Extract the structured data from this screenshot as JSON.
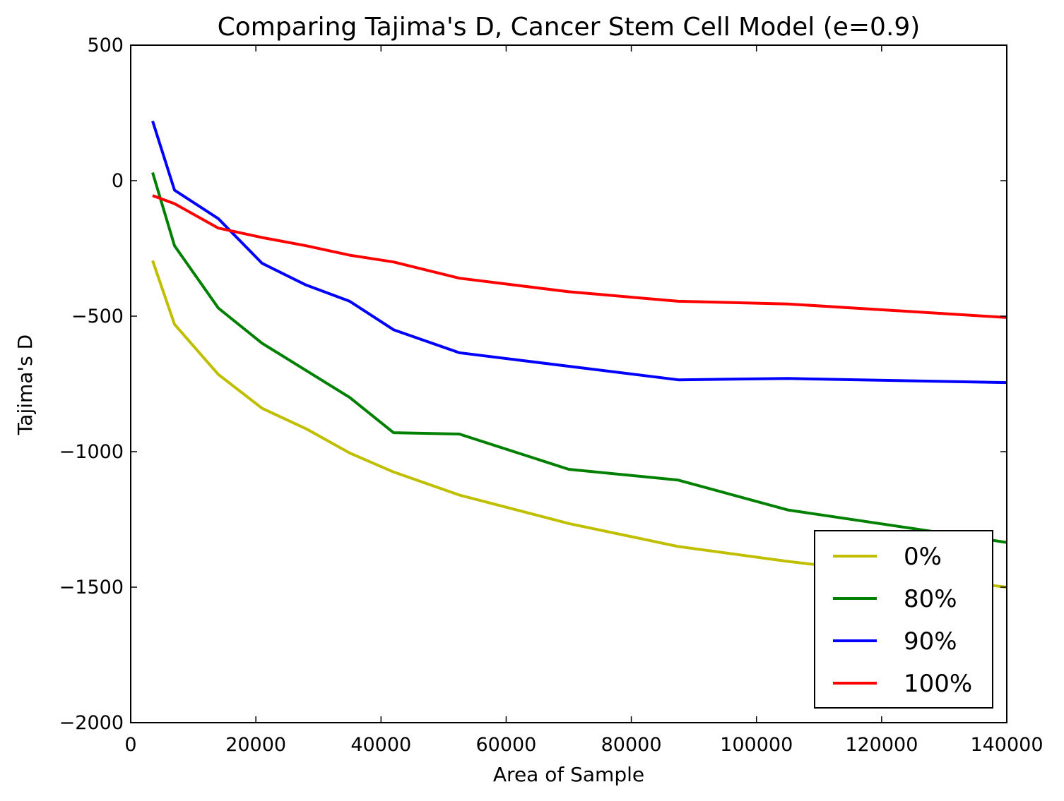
{
  "chart_data": {
    "type": "line",
    "title": "Comparing Tajima's D, Cancer Stem Cell Model (e=0.9)",
    "xlabel": "Area of Sample",
    "ylabel": "Tajima's D",
    "xlim": [
      0,
      140000
    ],
    "ylim": [
      -2000,
      500
    ],
    "xticks": [
      0,
      20000,
      40000,
      60000,
      80000,
      100000,
      120000,
      140000
    ],
    "xtick_labels": [
      "0",
      "20000",
      "40000",
      "60000",
      "80000",
      "100000",
      "120000",
      "140000"
    ],
    "yticks": [
      500,
      0,
      -500,
      -1000,
      -1500,
      -2000
    ],
    "ytick_labels": [
      "500",
      "0",
      "−500",
      "−1000",
      "−1500",
      "−2000"
    ],
    "grid": false,
    "legend_position": "lower-right",
    "x": [
      3500,
      7000,
      14000,
      21000,
      28000,
      35000,
      42000,
      52500,
      70000,
      87500,
      105000,
      140000
    ],
    "series": [
      {
        "name": "0%",
        "color": "#bfbf00",
        "values": [
          -295,
          -530,
          -715,
          -840,
          -915,
          -1005,
          -1075,
          -1160,
          -1265,
          -1350,
          -1405,
          -1500
        ]
      },
      {
        "name": "80%",
        "color": "#008000",
        "values": [
          30,
          -240,
          -470,
          -600,
          -700,
          -800,
          -930,
          -935,
          -1065,
          -1105,
          -1215,
          -1335
        ]
      },
      {
        "name": "90%",
        "color": "#0000ff",
        "values": [
          220,
          -35,
          -140,
          -305,
          -385,
          -445,
          -550,
          -635,
          -685,
          -735,
          -730,
          -745
        ]
      },
      {
        "name": "100%",
        "color": "#ff0000",
        "values": [
          -55,
          -85,
          -175,
          -210,
          -240,
          -275,
          -300,
          -360,
          -410,
          -445,
          -455,
          -505
        ]
      }
    ]
  }
}
